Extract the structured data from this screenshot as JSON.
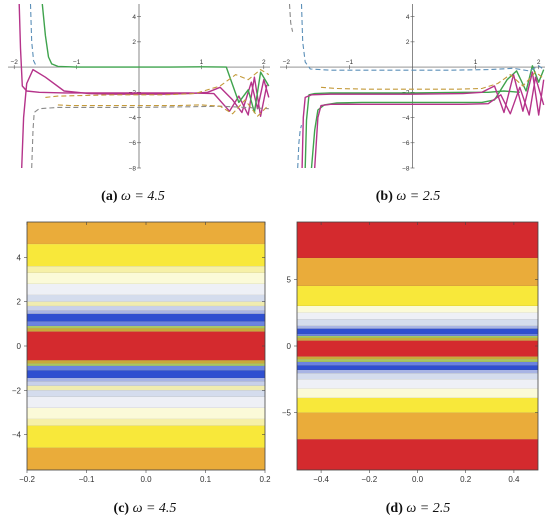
{
  "figure": {
    "panels": [
      {
        "id": "a",
        "label": "(a)",
        "math": "ω = 4.5"
      },
      {
        "id": "b",
        "label": "(b)",
        "math": "ω = 2.5"
      },
      {
        "id": "c",
        "label": "(c)",
        "math": "ω = 4.5"
      },
      {
        "id": "d",
        "label": "(d)",
        "math": "ω = 2.5"
      }
    ]
  },
  "chart_data": [
    {
      "panel": "a",
      "type": "line",
      "xlim": [
        -2.1,
        2.1
      ],
      "ylim": [
        -8,
        5
      ],
      "xticks": [
        -2,
        -1,
        1,
        2
      ],
      "yticks": [
        4,
        2,
        -2,
        -4,
        -6,
        -8
      ],
      "series": [
        {
          "style": "solid",
          "color": "#b5338a",
          "x": [
            -1.88,
            -1.85,
            -1.8,
            -1.7,
            -1.5,
            -1.2,
            -0.8,
            -0.4,
            0,
            0.4,
            0.8,
            1.1,
            1.3,
            1.5,
            1.65,
            1.8,
            1.9,
            2.0,
            2.08
          ],
          "y": [
            -8,
            -4,
            -1.3,
            -0.2,
            -0.8,
            -1.9,
            -2.1,
            -2.15,
            -2.15,
            -2.15,
            -2.1,
            -2.0,
            -1.6,
            -2.6,
            -3.6,
            -1.2,
            -3.3,
            -1.0,
            -2.4
          ]
        },
        {
          "style": "solid",
          "color": "#b5338a",
          "x": [
            -1.92,
            -1.9,
            -1.87,
            -1.8,
            -1.6,
            -1.2,
            -0.8,
            -0.4,
            0,
            0.4,
            0.8,
            1.2,
            1.45,
            1.6,
            1.75,
            1.85,
            1.95,
            2.05
          ],
          "y": [
            5,
            1.5,
            -1.5,
            -1.9,
            -2.0,
            -2.05,
            -2.05,
            -2.05,
            -2.05,
            -2.05,
            -2.05,
            -2.1,
            -3.5,
            -2.3,
            -3.8,
            -0.8,
            -3.9,
            -1.4
          ]
        },
        {
          "style": "solid",
          "color": "#3fa34d",
          "x": [
            -1.55,
            -1.5,
            -1.45,
            -1.4,
            -1.3,
            -1.0,
            -0.5,
            0,
            0.5,
            1.0,
            1.4,
            1.6,
            1.75,
            1.85,
            1.95,
            2.08
          ],
          "y": [
            5,
            2.5,
            0.8,
            0.25,
            0.05,
            0.0,
            0.0,
            0.0,
            0.0,
            0.02,
            0.0,
            -2.8,
            -1.8,
            -3.6,
            -0.4,
            -1.5
          ]
        },
        {
          "style": "dashed",
          "color": "#8a8a8a",
          "x": [
            -1.72,
            -1.7,
            -1.68,
            -1.6,
            -1.3,
            -0.8,
            0,
            0.8,
            1.3,
            1.7,
            2.08
          ],
          "y": [
            -8,
            -5,
            -3.6,
            -3.3,
            -3.2,
            -3.2,
            -3.2,
            -3.15,
            -3.1,
            -3.2,
            -3.3
          ]
        },
        {
          "style": "dashed",
          "color": "#c49a3a",
          "x": [
            -1.5,
            -1.3,
            -0.9,
            -0.4,
            0,
            0.4,
            0.9,
            1.3,
            1.55,
            1.75,
            1.95,
            2.08
          ],
          "y": [
            -2.4,
            -2.3,
            -2.25,
            -2.2,
            -2.2,
            -2.2,
            -2.1,
            -1.5,
            -0.6,
            -1.0,
            -0.2,
            -0.6
          ]
        },
        {
          "style": "dashed",
          "color": "#c49a3a",
          "x": [
            -1.3,
            -1.1,
            -0.6,
            0,
            0.6,
            1.0,
            1.3,
            1.5,
            1.7,
            1.9,
            2.08
          ],
          "y": [
            -3.0,
            -3.05,
            -3.05,
            -3.05,
            -3.05,
            -3.0,
            -3.1,
            -3.7,
            -2.6,
            -3.9,
            -3.0
          ]
        },
        {
          "style": "dashed",
          "color": "#5b8fb8",
          "x": [
            -1.74,
            -1.72,
            -1.69,
            -1.65
          ],
          "y": [
            5,
            2,
            0.5,
            0.1
          ]
        }
      ]
    },
    {
      "panel": "b",
      "type": "line",
      "xlim": [
        -2.1,
        2.1
      ],
      "ylim": [
        -8,
        5
      ],
      "xticks": [
        -2,
        -1,
        1,
        2
      ],
      "yticks": [
        4,
        2,
        -2,
        -4,
        -6,
        -8
      ],
      "series": [
        {
          "style": "solid",
          "color": "#3fa34d",
          "x": [
            -1.6,
            -1.55,
            -1.5,
            -1.4,
            -1.2,
            -0.8,
            -0.3,
            0.2,
            0.7,
            1.1,
            1.3,
            1.5,
            1.65,
            1.8,
            1.9,
            2.0,
            2.08
          ],
          "y": [
            -8,
            -5,
            -3.4,
            -3.0,
            -2.85,
            -2.8,
            -2.8,
            -2.8,
            -2.8,
            -2.8,
            -2.6,
            -1.0,
            -0.3,
            -1.9,
            0.1,
            -1.2,
            -0.2
          ]
        },
        {
          "style": "solid",
          "color": "#3fa34d",
          "x": [
            -1.7,
            -1.68,
            -1.64,
            -1.55,
            -1.3,
            -0.8,
            0,
            0.8,
            1.2,
            1.45,
            1.7
          ],
          "y": [
            -8,
            -4.2,
            -2.2,
            -2.1,
            -2.05,
            -2.05,
            -2.05,
            -2.0,
            -2.0,
            -1.9,
            -2.0
          ]
        },
        {
          "style": "solid",
          "color": "#b5338a",
          "x": [
            -1.75,
            -1.73,
            -1.7,
            -1.6,
            -1.3,
            -0.8,
            0,
            0.8,
            1.1,
            1.3,
            1.45,
            1.6,
            1.75,
            1.9,
            2.0,
            2.08
          ],
          "y": [
            -8,
            -4.0,
            -2.4,
            -2.2,
            -2.15,
            -2.15,
            -2.15,
            -2.1,
            -2.0,
            -1.5,
            -3.6,
            -0.6,
            -3.5,
            -0.4,
            -3.8,
            -1.0
          ]
        },
        {
          "style": "solid",
          "color": "#b5338a",
          "x": [
            -1.55,
            -1.5,
            -1.45,
            -1.3,
            -0.8,
            0,
            0.8,
            1.2,
            1.4,
            1.55,
            1.7,
            1.85,
            1.95,
            2.08
          ],
          "y": [
            -8,
            -4.0,
            -3.05,
            -2.95,
            -2.95,
            -2.95,
            -2.95,
            -2.9,
            -2.2,
            -3.7,
            -1.6,
            -3.8,
            -0.8,
            -3.0
          ]
        },
        {
          "style": "dashed",
          "color": "#5b8fb8",
          "x": [
            -1.76,
            -1.74,
            -1.7,
            -1.62,
            -1.3,
            -0.6,
            0,
            0.6,
            1.2,
            1.6,
            1.85,
            2.0,
            2.08
          ],
          "y": [
            5,
            2.0,
            0.4,
            -0.15,
            -0.25,
            -0.25,
            -0.25,
            -0.25,
            -0.2,
            -0.1,
            -0.3,
            0.1,
            -0.2
          ]
        },
        {
          "style": "dashed",
          "color": "#5b8fb8",
          "x": [
            -1.82,
            -1.8,
            -1.78,
            -1.76
          ],
          "y": [
            -8,
            -6,
            -5,
            -4.6
          ]
        },
        {
          "style": "dashed",
          "color": "#c49a3a",
          "x": [
            -1.45,
            -1.2,
            -0.7,
            0,
            0.7,
            1.1,
            1.35,
            1.55,
            1.75,
            1.95,
            2.08
          ],
          "y": [
            -1.6,
            -1.7,
            -1.75,
            -1.75,
            -1.75,
            -1.7,
            -1.3,
            -0.6,
            -1.5,
            -0.4,
            -0.9
          ]
        },
        {
          "style": "dashed",
          "color": "#8a8a8a",
          "x": [
            -1.95,
            -1.93,
            -1.9
          ],
          "y": [
            5,
            3.5,
            2.8
          ]
        }
      ]
    },
    {
      "panel": "c",
      "type": "heatmap",
      "xlim": [
        -0.2,
        0.2
      ],
      "ylim": [
        -5.6,
        5.6
      ],
      "xticks": [
        -0.2,
        -0.1,
        0.0,
        0.1,
        0.2
      ],
      "xtick_labels": [
        "−0.2",
        "−0.1",
        "0.0",
        "0.1",
        "0.2"
      ],
      "yticks": [
        4,
        2,
        0,
        -2,
        -4
      ],
      "ytick_labels": [
        "4",
        "2",
        "0",
        "−2",
        "−4"
      ],
      "bands": [
        {
          "y0": 4.6,
          "y1": 5.6,
          "color": "#eaac3a"
        },
        {
          "y0": 3.6,
          "y1": 4.6,
          "color": "#f8e83a"
        },
        {
          "y0": 3.3,
          "y1": 3.6,
          "color": "#f6f0a8"
        },
        {
          "y0": 2.8,
          "y1": 3.3,
          "color": "#fbfad8"
        },
        {
          "y0": 2.3,
          "y1": 2.8,
          "color": "#eef0f6"
        },
        {
          "y0": 2.0,
          "y1": 2.3,
          "color": "#d4dced"
        },
        {
          "y0": 1.8,
          "y1": 2.0,
          "color": "#f0ecb0"
        },
        {
          "y0": 1.6,
          "y1": 1.8,
          "color": "#c8d0ea"
        },
        {
          "y0": 1.45,
          "y1": 1.6,
          "color": "#a8b4e4"
        },
        {
          "y0": 1.1,
          "y1": 1.45,
          "color": "#2f4fd0"
        },
        {
          "y0": 0.9,
          "y1": 1.1,
          "color": "#6b83e0"
        },
        {
          "y0": 0.8,
          "y1": 0.9,
          "color": "#a8c860"
        },
        {
          "y0": 0.65,
          "y1": 0.8,
          "color": "#c8aa3a"
        },
        {
          "y0": -0.65,
          "y1": 0.65,
          "color": "#d42a2e"
        },
        {
          "y0": -0.8,
          "y1": -0.65,
          "color": "#c8aa3a"
        },
        {
          "y0": -0.9,
          "y1": -0.8,
          "color": "#a8c860"
        },
        {
          "y0": -1.1,
          "y1": -0.9,
          "color": "#6b83e0"
        },
        {
          "y0": -1.45,
          "y1": -1.1,
          "color": "#2f4fd0"
        },
        {
          "y0": -1.6,
          "y1": -1.45,
          "color": "#a8b4e4"
        },
        {
          "y0": -1.8,
          "y1": -1.6,
          "color": "#c8d0ea"
        },
        {
          "y0": -2.0,
          "y1": -1.8,
          "color": "#f0ecb0"
        },
        {
          "y0": -2.3,
          "y1": -2.0,
          "color": "#d4dced"
        },
        {
          "y0": -2.8,
          "y1": -2.3,
          "color": "#eef0f6"
        },
        {
          "y0": -3.3,
          "y1": -2.8,
          "color": "#fbfad8"
        },
        {
          "y0": -3.6,
          "y1": -3.3,
          "color": "#f6f0a8"
        },
        {
          "y0": -4.6,
          "y1": -3.6,
          "color": "#f8e83a"
        },
        {
          "y0": -5.6,
          "y1": -4.6,
          "color": "#eaac3a"
        }
      ]
    },
    {
      "panel": "d",
      "type": "heatmap",
      "xlim": [
        -0.5,
        0.5
      ],
      "ylim": [
        -9.3,
        9.3
      ],
      "xticks": [
        -0.4,
        -0.2,
        0.0,
        0.2,
        0.4
      ],
      "xtick_labels": [
        "−0.4",
        "−0.2",
        "0.0",
        "0.2",
        "0.4"
      ],
      "yticks": [
        5,
        0,
        -5
      ],
      "ytick_labels": [
        "5",
        "0",
        "−5"
      ],
      "bands": [
        {
          "y0": 6.6,
          "y1": 9.3,
          "color": "#d42a2e"
        },
        {
          "y0": 4.5,
          "y1": 6.6,
          "color": "#eaac3a"
        },
        {
          "y0": 3.0,
          "y1": 4.5,
          "color": "#f8e83a"
        },
        {
          "y0": 2.5,
          "y1": 3.0,
          "color": "#fbfad8"
        },
        {
          "y0": 2.0,
          "y1": 2.5,
          "color": "#eef0f6"
        },
        {
          "y0": 1.5,
          "y1": 2.0,
          "color": "#d4dced"
        },
        {
          "y0": 1.3,
          "y1": 1.5,
          "color": "#a8b4e4"
        },
        {
          "y0": 0.9,
          "y1": 1.3,
          "color": "#2f4fd0"
        },
        {
          "y0": 0.75,
          "y1": 0.9,
          "color": "#6b83e0"
        },
        {
          "y0": 0.6,
          "y1": 0.75,
          "color": "#a8c860"
        },
        {
          "y0": 0.4,
          "y1": 0.6,
          "color": "#c8aa3a"
        },
        {
          "y0": -0.8,
          "y1": 0.4,
          "color": "#d42a2e"
        },
        {
          "y0": -1.0,
          "y1": -0.8,
          "color": "#c8aa3a"
        },
        {
          "y0": -1.2,
          "y1": -1.0,
          "color": "#a8c860"
        },
        {
          "y0": -1.45,
          "y1": -1.2,
          "color": "#6b83e0"
        },
        {
          "y0": -1.8,
          "y1": -1.45,
          "color": "#2f4fd0"
        },
        {
          "y0": -2.05,
          "y1": -1.8,
          "color": "#a8b4e4"
        },
        {
          "y0": -2.5,
          "y1": -2.05,
          "color": "#d4dced"
        },
        {
          "y0": -3.2,
          "y1": -2.5,
          "color": "#eef0f6"
        },
        {
          "y0": -3.9,
          "y1": -3.2,
          "color": "#fbfad8"
        },
        {
          "y0": -5.0,
          "y1": -3.9,
          "color": "#f8e83a"
        },
        {
          "y0": -7.0,
          "y1": -5.0,
          "color": "#eaac3a"
        },
        {
          "y0": -9.3,
          "y1": -7.0,
          "color": "#d42a2e"
        }
      ]
    }
  ]
}
